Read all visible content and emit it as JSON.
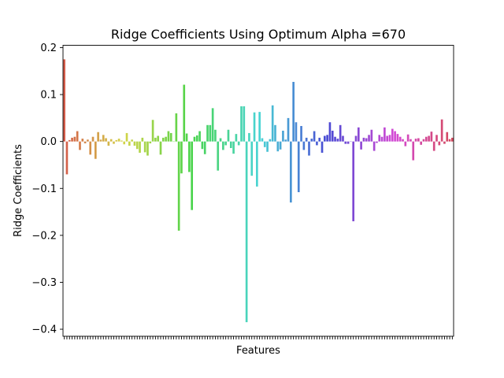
{
  "chart_data": {
    "type": "bar",
    "title": "Ridge Coefficients Using Optimum Alpha =670",
    "xlabel": "Features",
    "ylabel": "Ridge Coefficients",
    "ylim": [
      -0.415,
      0.205
    ],
    "yticks": [
      0.2,
      0.1,
      0.0,
      -0.1,
      -0.2,
      -0.3,
      -0.4
    ],
    "ytick_labels": [
      "0.2",
      "0.1",
      "0.0",
      "−0.1",
      "−0.2",
      "−0.3",
      "−0.4"
    ],
    "xtick_labels_visible": false,
    "grid": false,
    "palette": "husl rainbow (seaborn default categorical)",
    "values": [
      0.175,
      -0.07,
      0.003,
      0.008,
      0.01,
      0.022,
      -0.018,
      0.006,
      -0.004,
      0.004,
      -0.028,
      0.01,
      -0.037,
      0.02,
      0.004,
      0.014,
      0.007,
      -0.009,
      0.005,
      -0.005,
      0.003,
      0.006,
      0.002,
      -0.006,
      0.018,
      -0.009,
      0.004,
      -0.009,
      -0.016,
      -0.024,
      0.008,
      -0.023,
      -0.03,
      -0.004,
      0.046,
      0.008,
      0.012,
      -0.028,
      0.008,
      0.01,
      0.022,
      0.018,
      0.0,
      0.06,
      -0.19,
      -0.068,
      0.121,
      0.017,
      -0.065,
      -0.146,
      0.01,
      0.013,
      0.022,
      -0.016,
      -0.027,
      0.035,
      0.035,
      0.071,
      0.025,
      -0.062,
      0.007,
      -0.018,
      -0.008,
      0.025,
      -0.014,
      -0.026,
      0.016,
      -0.008,
      0.075,
      0.075,
      -0.385,
      0.018,
      -0.073,
      0.062,
      -0.096,
      0.063,
      0.007,
      -0.012,
      -0.022,
      0.005,
      0.077,
      0.035,
      -0.021,
      -0.017,
      0.023,
      0.004,
      0.05,
      -0.13,
      0.127,
      0.041,
      -0.108,
      0.033,
      -0.018,
      0.008,
      -0.03,
      0.006,
      0.022,
      -0.008,
      0.008,
      -0.024,
      0.012,
      0.014,
      0.041,
      0.023,
      0.01,
      0.006,
      0.035,
      0.012,
      -0.005,
      -0.005,
      0.0,
      -0.17,
      0.012,
      0.03,
      -0.017,
      0.008,
      0.007,
      0.014,
      0.025,
      -0.02,
      -0.003,
      0.014,
      0.01,
      0.03,
      0.012,
      0.014,
      0.027,
      0.022,
      0.016,
      0.01,
      0.005,
      -0.01,
      0.015,
      0.005,
      -0.04,
      0.006,
      0.007,
      -0.007,
      0.005,
      0.01,
      0.012,
      0.021,
      -0.02,
      0.014,
      -0.008,
      0.047,
      -0.005,
      0.02,
      0.005,
      0.008
    ]
  }
}
